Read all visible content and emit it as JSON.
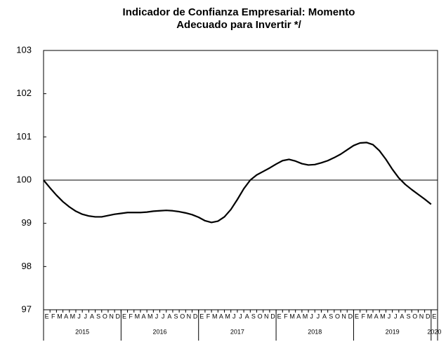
{
  "chart_data": {
    "type": "line",
    "title_lines": [
      "Indicador de Confianza Empresarial: Momento",
      "Adecuado para Invertir */"
    ],
    "categories": [
      "E",
      "F",
      "M",
      "A",
      "M",
      "J",
      "J",
      "A",
      "S",
      "O",
      "N",
      "D",
      "E",
      "F",
      "M",
      "A",
      "M",
      "J",
      "J",
      "A",
      "S",
      "O",
      "N",
      "D",
      "E",
      "F",
      "M",
      "A",
      "M",
      "J",
      "J",
      "A",
      "S",
      "O",
      "N",
      "D",
      "E",
      "F",
      "M",
      "A",
      "M",
      "J",
      "J",
      "A",
      "S",
      "O",
      "N",
      "D",
      "E",
      "F",
      "M",
      "A",
      "M",
      "J",
      "J",
      "A",
      "S",
      "O",
      "N",
      "D",
      "E"
    ],
    "years": [
      "2015",
      "2016",
      "2017",
      "2018",
      "2019",
      "2020"
    ],
    "values": [
      100.0,
      99.82,
      99.65,
      99.5,
      99.38,
      99.28,
      99.21,
      99.17,
      99.15,
      99.15,
      99.18,
      99.21,
      99.23,
      99.25,
      99.25,
      99.25,
      99.26,
      99.28,
      99.29,
      99.3,
      99.29,
      99.27,
      99.24,
      99.2,
      99.14,
      99.06,
      99.02,
      99.05,
      99.15,
      99.32,
      99.55,
      99.8,
      100.0,
      100.12,
      100.2,
      100.28,
      100.37,
      100.45,
      100.48,
      100.44,
      100.38,
      100.35,
      100.36,
      100.4,
      100.45,
      100.52,
      100.6,
      100.7,
      100.8,
      100.86,
      100.87,
      100.82,
      100.68,
      100.48,
      100.25,
      100.05,
      99.9,
      99.78,
      99.67,
      99.56,
      99.44
    ],
    "color": "#000000",
    "reference_line": 100,
    "ylim": [
      97,
      103
    ],
    "yticks": [
      97,
      98,
      99,
      100,
      101,
      102,
      103
    ],
    "grid": false
  }
}
